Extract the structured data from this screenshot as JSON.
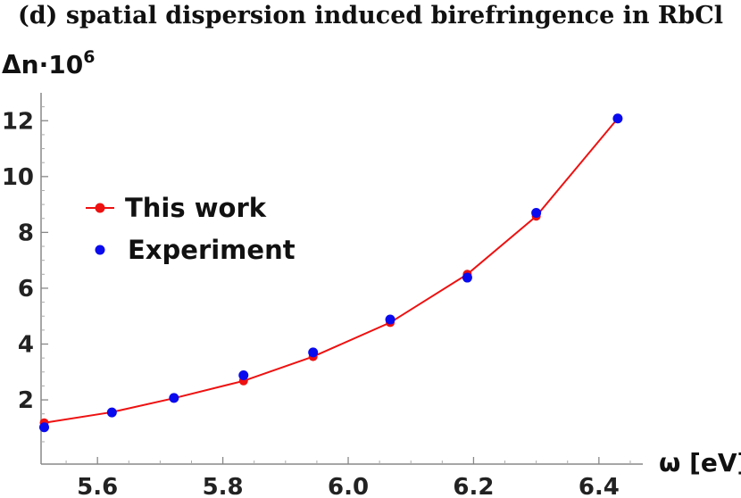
{
  "chart_data": {
    "type": "line",
    "title": "(d) spatial dispersion induced birefringence in RbCl",
    "ylabel": "Δn·10",
    "ylabel_exp": "6",
    "xlabel": "ω [eV]",
    "xlim": [
      5.51,
      6.47
    ],
    "ylim": [
      -0.3,
      13.0
    ],
    "x_ticks": [
      5.6,
      5.8,
      6.0,
      6.2,
      6.4
    ],
    "x_tick_labels": [
      "5.6",
      "5.8",
      "6.0",
      "6.2",
      "6.4"
    ],
    "y_ticks": [
      2,
      4,
      6,
      8,
      10,
      12
    ],
    "y_tick_labels": [
      "2",
      "4",
      "6",
      "8",
      "10",
      "12"
    ],
    "legend_position": "upper-left",
    "series": [
      {
        "name": "This work",
        "style": "line+markers",
        "color": "#ee1111",
        "x": [
          5.515,
          5.623,
          5.722,
          5.833,
          5.944,
          6.067,
          6.19,
          6.3,
          6.43
        ],
        "y": [
          1.18,
          1.56,
          2.06,
          2.68,
          3.55,
          4.77,
          6.5,
          8.58,
          12.08
        ]
      },
      {
        "name": "Experiment",
        "style": "markers",
        "color": "#0a0aee",
        "x": [
          5.515,
          5.623,
          5.722,
          5.833,
          5.944,
          6.067,
          6.19,
          6.3,
          6.43
        ],
        "y": [
          1.02,
          1.55,
          2.07,
          2.88,
          3.7,
          4.88,
          6.38,
          8.7,
          12.08
        ]
      }
    ]
  }
}
